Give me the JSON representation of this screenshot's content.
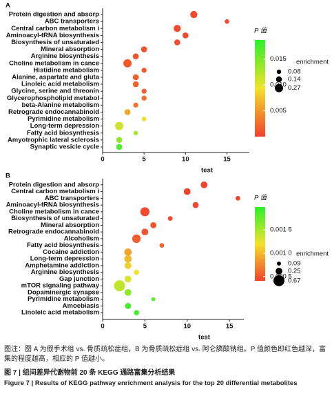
{
  "chart_data": [
    {
      "type": "bubble",
      "panel_label": "A",
      "x_label": "test",
      "categories": [
        "Protein digestion and absorp",
        "ABC transporters",
        "Central carbon metabolism i",
        "Aminoacyl-tRNA biosynthesis",
        "Biosynthesis of unsaturated",
        "Mineral absorption",
        "Arginine biosynthesis",
        "Choline metabolism in cance",
        "Histidine metabolism",
        "Alanine, aspartate and gluta",
        "Linoleic acid metabolism",
        "Glycine, serine and threonin",
        "Glycerophospholipid metabol",
        "beta-Alanine metabolism",
        "Retrograde endocannabinoid",
        "Pyrimidine metabolism",
        "Long-term depression",
        "Fatty acid biosynthesis",
        "Amyotrophic lateral sclerosis",
        "Synaptic vesicle cycle"
      ],
      "values": [
        11,
        15,
        9,
        10,
        9,
        5,
        4,
        3,
        5,
        4,
        4,
        5,
        5,
        4,
        3,
        5,
        2,
        4,
        2,
        2
      ],
      "enrichment": [
        0.2,
        0.08,
        0.2,
        0.14,
        0.14,
        0.14,
        0.14,
        0.27,
        0.1,
        0.14,
        0.14,
        0.1,
        0.1,
        0.1,
        0.14,
        0.08,
        0.27,
        0.08,
        0.14,
        0.14
      ],
      "p_values": [
        0.0005,
        0.0005,
        0.0006,
        0.0007,
        0.0008,
        0.001,
        0.0012,
        0.0015,
        0.0015,
        0.0018,
        0.002,
        0.002,
        0.0025,
        0.003,
        0.006,
        0.009,
        0.011,
        0.013,
        0.014,
        0.017
      ],
      "xlim": [
        0,
        17.7
      ],
      "xticks": [
        0,
        5,
        10,
        15
      ],
      "color_legend_title": "P 值",
      "clim": [
        0,
        0.0187
      ],
      "cticks": [
        0.005,
        {
          "value": 0.01,
          "label": "0.010"
        },
        0.015
      ],
      "size_legend_title": "enrichment",
      "size_legend": [
        0.08,
        0.14,
        0.27
      ]
    },
    {
      "type": "bubble",
      "panel_label": "B",
      "x_label": "test",
      "categories": [
        "Protein digestion and absorp",
        "Central carbon metabolism i",
        "ABC transporters",
        "Aminoacyl-tRNA biosynthesis",
        "Choline metabolism in cance",
        "Biosynthesis of unsaturated",
        "Mineral absorption",
        "Retrograde endocannabinoid",
        "Alcoholism",
        "Fatty acid biosynthesis",
        "Cocaine addiction",
        "Long-term depression",
        "Amphetamine addiction",
        "Arginine biosynthesis",
        "Gap junction",
        "mTOR signaling pathway",
        "Dopaminergic synapse",
        "Pyrimidine metabolism",
        "Amoebiasis",
        "Linoleic acid metabolism"
      ],
      "values": [
        12,
        10,
        16,
        11,
        5,
        8,
        6,
        5,
        4,
        7,
        3,
        3,
        3,
        4,
        3,
        2,
        3,
        6,
        3,
        4
      ],
      "enrichment": [
        0.25,
        0.25,
        0.12,
        0.2,
        0.45,
        0.12,
        0.2,
        0.25,
        0.4,
        0.12,
        0.3,
        0.3,
        0.25,
        0.15,
        0.25,
        0.67,
        0.25,
        0.09,
        0.2,
        0.15
      ],
      "p_values": [
        0.00042,
        0.00042,
        0.00042,
        0.00043,
        0.00045,
        0.00045,
        0.0005,
        0.0005,
        0.00055,
        0.0006,
        0.0009,
        0.001,
        0.0011,
        0.0012,
        0.0013,
        0.0014,
        0.0016,
        0.0018,
        0.0019,
        0.0019
      ],
      "xlim": [
        0,
        16.7
      ],
      "xticks": [
        0,
        5,
        10,
        15
      ],
      "color_legend_title": "P 值",
      "clim": [
        0.00041,
        0.00199
      ],
      "cticks": [
        {
          "value": 0.0005,
          "label": "0.000 5"
        },
        {
          "value": 0.001,
          "label": "0.001 0"
        },
        {
          "value": 0.0015,
          "label": "0.001 5"
        }
      ],
      "size_legend_title": "enrichment",
      "size_legend": [
        0.09,
        0.25,
        0.67
      ]
    }
  ],
  "caption": {
    "note": "图注：图 A 为假手术组 vs. 骨质疏松症组，B 为骨质疏松症组 vs. 阿仑膦酸钠组。P 值颜色即红色越深，富集的程度越高，相应的 P 值越小。",
    "title_cn": "图 7  |  组间差异代谢物前 20 条 KEGG 通路富集分析结果",
    "title_en": "Figure 7  |  Results of KEGG pathway enrichment analysis for the top 20 differential metabolites"
  }
}
